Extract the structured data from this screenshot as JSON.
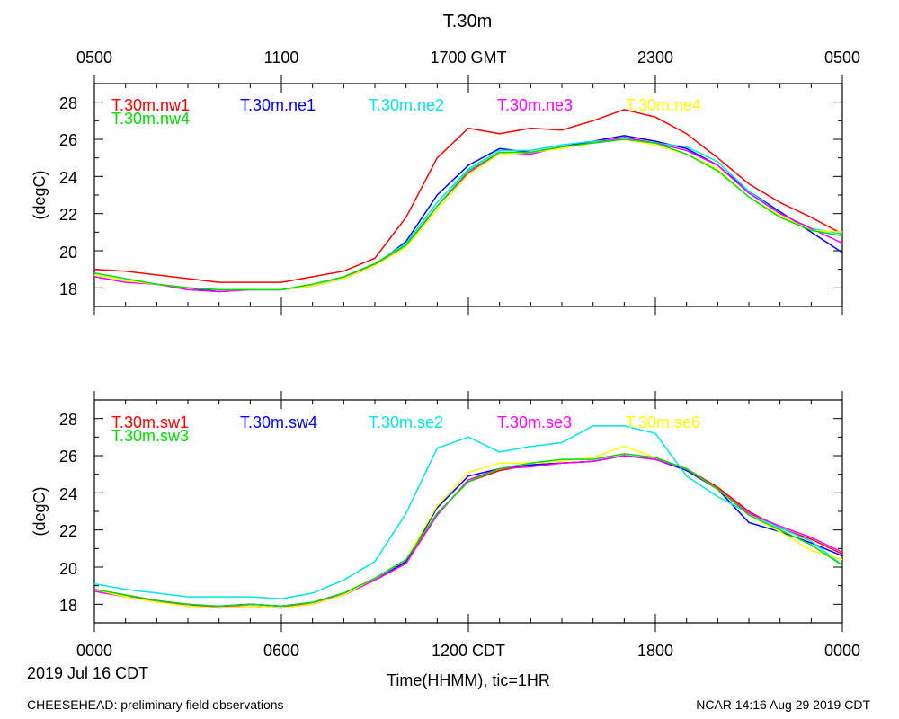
{
  "header": {
    "title": "T.30m",
    "gmt_ticks": [
      "0500",
      "1100",
      "1700 GMT",
      "2300",
      "0500"
    ]
  },
  "footer": {
    "date": "2019 Jul 16 CDT",
    "xlabel": "Time(HHMM), tic=1HR",
    "left_note": "CHEESEHEAD: preliminary field observations",
    "right_note": "NCAR 14:16 Aug 29 2019 CDT"
  },
  "colors": {
    "red": "#ff0000",
    "blue": "#0000ff",
    "cyan": "#00e5e5",
    "magenta": "#ff00ff",
    "yellow": "#ffff00",
    "green": "#00dd00"
  },
  "chart_data": [
    {
      "type": "line",
      "title": "T.30m",
      "ylabel": "(degC)",
      "ylim": [
        17,
        29
      ],
      "yticks": [
        "18",
        "20",
        "22",
        "24",
        "26",
        "28"
      ],
      "xlim": [
        0,
        24
      ],
      "x_ticks_bottom": [
        "0000",
        "0600",
        "1200 CDT",
        "1800",
        "0000"
      ],
      "x": [
        0,
        1,
        2,
        3,
        4,
        5,
        6,
        7,
        8,
        9,
        10,
        11,
        12,
        13,
        14,
        15,
        16,
        17,
        18,
        19,
        20,
        21,
        22,
        23,
        24
      ],
      "series": [
        {
          "name": "T.30m.nw1",
          "color": "#ff0000",
          "values": [
            19.0,
            18.9,
            18.7,
            18.5,
            18.3,
            18.3,
            18.3,
            18.6,
            18.9,
            19.6,
            21.8,
            25.0,
            26.6,
            26.3,
            26.6,
            26.5,
            27.0,
            27.6,
            27.2,
            26.3,
            25.0,
            23.6,
            22.6,
            21.8,
            20.9
          ]
        },
        {
          "name": "T.30m.ne1",
          "color": "#0000ff",
          "values": [
            18.7,
            18.4,
            18.2,
            18.0,
            17.8,
            17.9,
            17.9,
            18.1,
            18.5,
            19.2,
            20.5,
            23.0,
            24.6,
            25.5,
            25.3,
            25.6,
            25.9,
            26.2,
            25.9,
            25.5,
            24.6,
            23.2,
            22.1,
            21.0,
            19.9
          ]
        },
        {
          "name": "T.30m.ne2",
          "color": "#00e5e5",
          "values": [
            18.7,
            18.4,
            18.2,
            18.0,
            17.9,
            17.9,
            17.9,
            18.1,
            18.6,
            19.3,
            20.4,
            22.6,
            24.4,
            25.4,
            25.4,
            25.7,
            25.9,
            26.0,
            25.8,
            25.6,
            24.8,
            23.2,
            22.0,
            21.2,
            20.9
          ]
        },
        {
          "name": "T.30m.ne3",
          "color": "#ff00ff",
          "values": [
            18.6,
            18.3,
            18.2,
            17.9,
            17.8,
            17.9,
            17.9,
            18.1,
            18.5,
            19.3,
            20.2,
            22.4,
            24.2,
            25.3,
            25.2,
            25.6,
            25.8,
            26.1,
            25.8,
            25.4,
            24.6,
            23.1,
            22.0,
            21.2,
            20.4
          ]
        },
        {
          "name": "T.30m.ne4",
          "color": "#ffff00",
          "values": [
            18.7,
            18.4,
            18.2,
            18.0,
            17.9,
            17.9,
            17.9,
            18.1,
            18.5,
            19.2,
            20.2,
            22.2,
            24.1,
            25.2,
            25.3,
            25.5,
            25.8,
            26.0,
            25.7,
            25.2,
            24.4,
            22.9,
            21.9,
            21.1,
            21.0
          ]
        },
        {
          "name": "T.30m.nw4",
          "color": "#00dd00",
          "values": [
            18.8,
            18.5,
            18.2,
            18.0,
            17.9,
            17.9,
            17.9,
            18.2,
            18.6,
            19.3,
            20.3,
            22.4,
            24.3,
            25.3,
            25.3,
            25.6,
            25.8,
            26.0,
            25.8,
            25.2,
            24.3,
            22.9,
            21.8,
            21.1,
            20.8
          ]
        }
      ]
    },
    {
      "type": "line",
      "ylabel": "(degC)",
      "ylim": [
        17,
        29
      ],
      "yticks": [
        "18",
        "20",
        "22",
        "24",
        "26",
        "28"
      ],
      "xlim": [
        0,
        24
      ],
      "x_ticks_bottom": [
        "0000",
        "0600",
        "1200 CDT",
        "1800",
        "0000"
      ],
      "x": [
        0,
        1,
        2,
        3,
        4,
        5,
        6,
        7,
        8,
        9,
        10,
        11,
        12,
        13,
        14,
        15,
        16,
        17,
        18,
        19,
        20,
        21,
        22,
        23,
        24
      ],
      "series": [
        {
          "name": "T.30m.sw1",
          "color": "#ff0000",
          "values": [
            18.8,
            18.5,
            18.2,
            18.0,
            17.8,
            17.9,
            17.8,
            18.0,
            18.5,
            19.3,
            20.2,
            22.9,
            24.6,
            25.2,
            25.5,
            25.6,
            25.7,
            26.0,
            25.8,
            25.3,
            24.3,
            23.0,
            22.1,
            21.5,
            20.7
          ]
        },
        {
          "name": "T.30m.sw4",
          "color": "#0000ff",
          "values": [
            18.8,
            18.4,
            18.2,
            17.9,
            17.9,
            18.0,
            17.9,
            18.1,
            18.6,
            19.3,
            20.3,
            23.2,
            24.9,
            25.3,
            25.5,
            25.6,
            25.7,
            26.0,
            25.8,
            25.2,
            24.2,
            22.4,
            21.9,
            21.3,
            20.6
          ]
        },
        {
          "name": "T.30m.se2",
          "color": "#00e5e5",
          "values": [
            19.1,
            18.8,
            18.6,
            18.4,
            18.4,
            18.4,
            18.3,
            18.6,
            19.3,
            20.3,
            22.9,
            26.4,
            27.0,
            26.2,
            26.5,
            26.7,
            27.6,
            27.6,
            27.2,
            24.9,
            23.8,
            22.9,
            22.1,
            21.4,
            20.1
          ]
        },
        {
          "name": "T.30m.se3",
          "color": "#ff00ff",
          "values": [
            18.7,
            18.4,
            18.2,
            17.9,
            17.9,
            17.9,
            17.8,
            18.1,
            18.5,
            19.3,
            20.2,
            22.8,
            24.7,
            25.3,
            25.4,
            25.6,
            25.7,
            26.0,
            25.8,
            25.3,
            24.2,
            22.9,
            22.2,
            21.6,
            20.8
          ]
        },
        {
          "name": "T.30m.se6",
          "color": "#ffff00",
          "values": [
            18.8,
            18.4,
            18.1,
            17.9,
            17.8,
            17.9,
            17.8,
            18.0,
            18.5,
            19.4,
            20.4,
            23.3,
            25.1,
            25.6,
            25.6,
            25.7,
            25.9,
            26.5,
            25.9,
            25.3,
            24.2,
            22.8,
            21.9,
            20.9,
            20.4
          ]
        },
        {
          "name": "T.30m.sw3",
          "color": "#00dd00",
          "values": [
            18.8,
            18.5,
            18.2,
            18.0,
            17.9,
            18.0,
            17.9,
            18.1,
            18.6,
            19.4,
            20.4,
            22.9,
            24.6,
            25.3,
            25.6,
            25.8,
            25.8,
            26.1,
            25.9,
            25.3,
            24.2,
            22.8,
            22.0,
            21.2,
            20.1
          ]
        }
      ]
    }
  ]
}
